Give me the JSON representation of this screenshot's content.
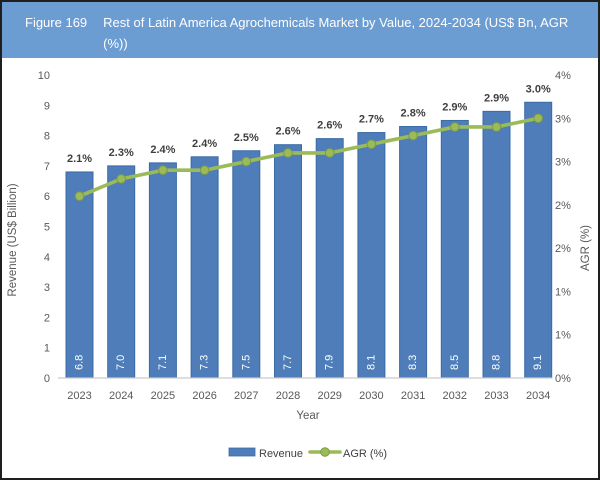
{
  "header": {
    "figure_label": "Figure 169",
    "title_lines": [
      "Rest of Latin America Agrochemicals Market by Value, 2024-2034 (US$ Bn, AGR",
      "(%))"
    ],
    "bg_color": "#6b9cd2",
    "text_color": "#ffffff"
  },
  "chart_data": {
    "type": "bar",
    "subtype": "combo-bar-line",
    "categories": [
      "2023",
      "2024",
      "2025",
      "2026",
      "2027",
      "2028",
      "2029",
      "2030",
      "2031",
      "2032",
      "2033",
      "2034"
    ],
    "series": [
      {
        "name": "Revenue",
        "type": "bar",
        "axis": "left",
        "values": [
          6.8,
          7.0,
          7.1,
          7.3,
          7.5,
          7.7,
          7.9,
          8.1,
          8.3,
          8.5,
          8.8,
          9.1
        ],
        "labels": [
          "6.8",
          "7.0",
          "7.1",
          "7.3",
          "7.5",
          "7.7",
          "7.9",
          "8.1",
          "8.3",
          "8.5",
          "8.8",
          "9.1"
        ],
        "color": "#4e7dba",
        "border_color": "#3a6ba5",
        "label_color": "#ffffff"
      },
      {
        "name": "AGR (%)",
        "type": "line",
        "axis": "right",
        "values": [
          2.1,
          2.3,
          2.4,
          2.4,
          2.5,
          2.6,
          2.6,
          2.7,
          2.8,
          2.9,
          2.9,
          3.0
        ],
        "labels": [
          "2.1%",
          "2.3%",
          "2.4%",
          "2.4%",
          "2.5%",
          "2.6%",
          "2.6%",
          "2.7%",
          "2.8%",
          "2.9%",
          "2.9%",
          "3.0%"
        ],
        "color": "#9bbb59",
        "marker_stroke": "#7e9b44",
        "label_color": "#3f3f3f"
      }
    ],
    "left_axis": {
      "title": "Revenue (US$ Billion)",
      "min": 0,
      "max": 10,
      "step": 1,
      "tick_labels": [
        "0",
        "1",
        "2",
        "3",
        "4",
        "5",
        "6",
        "7",
        "8",
        "9",
        "10"
      ]
    },
    "right_axis": {
      "title": "AGR (%)",
      "min": 0,
      "max": 3.5,
      "step": 0.5,
      "tick_labels": [
        "0%",
        "1%",
        "1%",
        "2%",
        "2%",
        "3%",
        "3%",
        "4%"
      ]
    },
    "x_axis": {
      "title": "Year"
    },
    "legend": [
      {
        "label": "Revenue",
        "swatch": "bar",
        "color": "#4e7dba"
      },
      {
        "label": "AGR (%)",
        "swatch": "line-marker",
        "color": "#9bbb59"
      }
    ],
    "grid": false,
    "legend_position": "bottom-center",
    "text_color": "#595959",
    "axis_line_color": "#c9c9c9"
  }
}
